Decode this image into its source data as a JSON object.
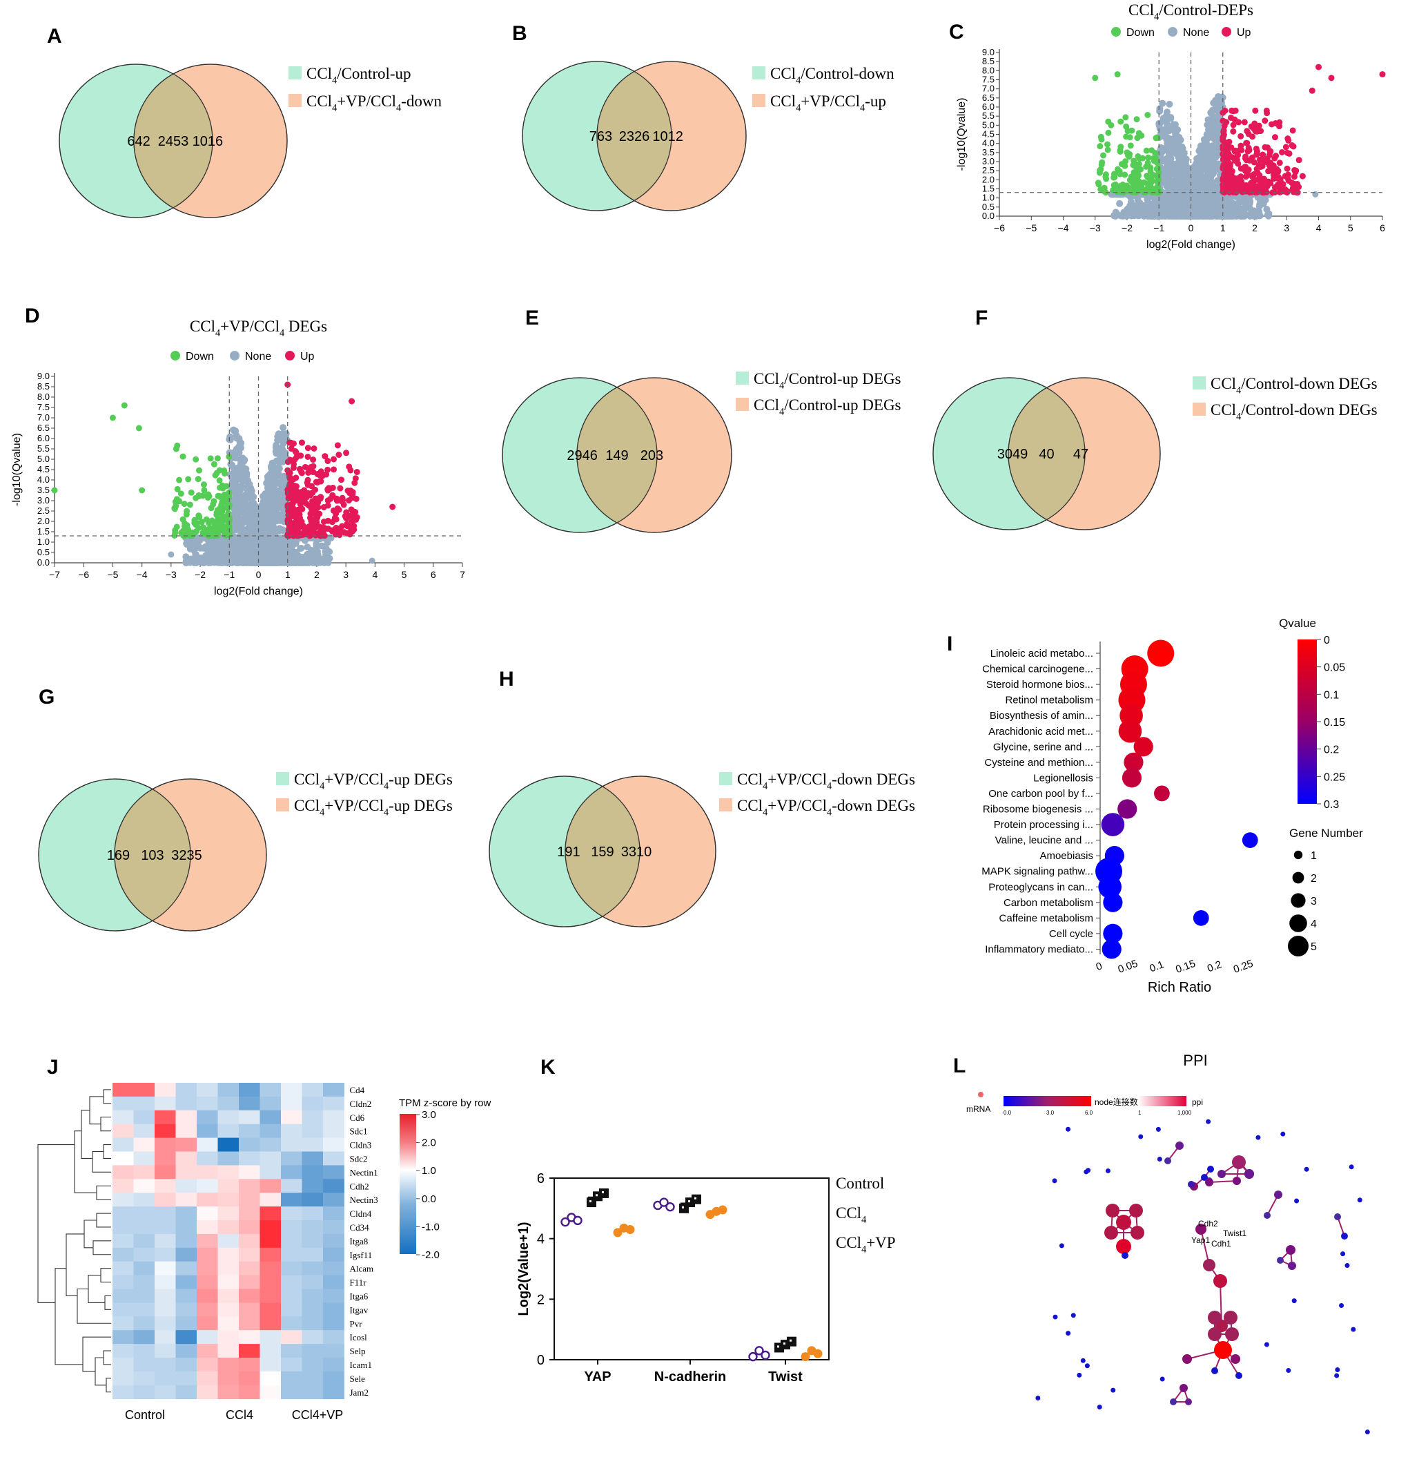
{
  "panels": {
    "A": "A",
    "B": "B",
    "C": "C",
    "D": "D",
    "E": "E",
    "F": "F",
    "G": "G",
    "H": "H",
    "I": "I",
    "J": "J",
    "K": "K",
    "L": "L"
  },
  "colors": {
    "left": "#b5edd6",
    "right": "#fac7a8",
    "overlap": "#cbbf8f",
    "down": "#55cc55",
    "none": "#97adc4",
    "up": "#e5195a"
  },
  "chart_data": [
    {
      "id": "A",
      "type": "venn",
      "sets": [
        {
          "legend_main": "CCl",
          "legend_sub": "4",
          "legend_rest": "/Control-up",
          "only": "642"
        },
        {
          "legend_main": "CCl",
          "legend_sub": "4",
          "legend_rest": "+VP/CCl",
          "legend_sub2": "4",
          "legend_tail": "-down",
          "only": "1016"
        }
      ],
      "overlap": "2453"
    },
    {
      "id": "B",
      "type": "venn",
      "sets": [
        {
          "legend_main": "CCl",
          "legend_sub": "4",
          "legend_rest": "/Control-down",
          "only": "763"
        },
        {
          "legend_main": "CCl",
          "legend_sub": "4",
          "legend_rest": "+VP/CCl",
          "legend_sub2": "4",
          "legend_tail": "-up",
          "only": "1012"
        }
      ],
      "overlap": "2326"
    },
    {
      "id": "C",
      "type": "scatter",
      "title_main": "CCl",
      "title_sub": "4",
      "title_rest": "/Control-DEPs",
      "legend": [
        "Down",
        "None",
        "Up"
      ],
      "xlabel": "log2(Fold change)",
      "ylabel": "-log10(Qvalue)",
      "xlim": [
        -6,
        6
      ],
      "ylim": [
        0,
        9
      ],
      "thresholds": {
        "fc": 1,
        "q": 1.3
      },
      "xticks": [
        "−6",
        "−5",
        "−4",
        "−3",
        "−2",
        "−1",
        "0",
        "1",
        "2",
        "3",
        "4",
        "5",
        "6"
      ],
      "yticks": [
        "0.0",
        "0.5",
        "1.0",
        "1.5",
        "2.0",
        "2.5",
        "3.0",
        "3.5",
        "4.0",
        "4.5",
        "5.0",
        "5.5",
        "6.0",
        "6.5",
        "7.0",
        "7.5",
        "8.0",
        "8.5",
        "9.0"
      ],
      "outliers": [
        [
          4.0,
          8.2
        ],
        [
          4.4,
          7.6
        ],
        [
          6.0,
          7.8
        ],
        [
          3.8,
          6.9
        ],
        [
          -3.0,
          7.6
        ],
        [
          -2.3,
          7.8
        ],
        [
          -2.2,
          5.2
        ],
        [
          -2.5,
          5.0
        ],
        [
          -2.0,
          3.5
        ],
        [
          3.5,
          2.2
        ],
        [
          3.9,
          1.2
        ]
      ]
    },
    {
      "id": "D",
      "type": "scatter",
      "title_main": "CCl",
      "title_sub": "4",
      "title_rest": "+VP/CCl",
      "title_sub2": "4",
      "title_tail": " DEGs",
      "legend": [
        "Down",
        "None",
        "Up"
      ],
      "xlabel": "log2(Fold change)",
      "ylabel": "-log10(Qvalue)",
      "xlim": [
        -7,
        7
      ],
      "ylim": [
        0,
        9
      ],
      "thresholds": {
        "fc": 1,
        "q": 1.3
      },
      "xticks": [
        "−7",
        "−6",
        "−5",
        "−4",
        "−3",
        "−2",
        "−1",
        "0",
        "1",
        "2",
        "3",
        "4",
        "5",
        "6",
        "7"
      ],
      "yticks": [
        "0.0",
        "0.5",
        "1.0",
        "1.5",
        "2.0",
        "2.5",
        "3.0",
        "3.5",
        "4.0",
        "4.5",
        "5.0",
        "5.5",
        "6.0",
        "6.5",
        "7.0",
        "7.5",
        "8.0",
        "8.5",
        "9.0"
      ],
      "outliers": [
        [
          -4.6,
          7.6
        ],
        [
          -5.0,
          7.0
        ],
        [
          -4.1,
          6.5
        ],
        [
          -4.0,
          3.5
        ],
        [
          -7.0,
          3.5
        ],
        [
          3.2,
          7.8
        ],
        [
          1.0,
          8.6
        ],
        [
          4.6,
          2.7
        ],
        [
          3.9,
          0.1
        ],
        [
          -3.0,
          0.4
        ]
      ]
    },
    {
      "id": "E",
      "type": "venn",
      "sets": [
        {
          "legend_main": "CCl",
          "legend_sub": "4",
          "legend_rest": "/Control-up DEGs",
          "only": "2946"
        },
        {
          "legend_main": "CCl",
          "legend_sub": "4",
          "legend_rest": "/Control-up DEGs",
          "only": "203"
        }
      ],
      "overlap": "149"
    },
    {
      "id": "F",
      "type": "venn",
      "sets": [
        {
          "legend_main": "CCl",
          "legend_sub": "4",
          "legend_rest": "/Control-down DEGs",
          "only": "3049"
        },
        {
          "legend_main": "CCl",
          "legend_sub": "4",
          "legend_rest": "/Control-down DEGs",
          "only": "47"
        }
      ],
      "overlap": "40"
    },
    {
      "id": "G",
      "type": "venn",
      "sets": [
        {
          "legend_main": "CCl",
          "legend_sub": "4",
          "legend_rest": "+VP/CCl",
          "legend_sub2": "4",
          "legend_tail": "-up DEGs",
          "only": "169"
        },
        {
          "legend_main": "CCl",
          "legend_sub": "4",
          "legend_rest": "+VP/CCl",
          "legend_sub2": "4",
          "legend_tail": "-up DEGs",
          "only": "3235"
        }
      ],
      "overlap": "103"
    },
    {
      "id": "H",
      "type": "venn",
      "sets": [
        {
          "legend_main": "CCl",
          "legend_sub": "4",
          "legend_rest": "+VP/CCl",
          "legend_sub2": "4",
          "legend_tail": "-down DEGs",
          "only": "191"
        },
        {
          "legend_main": "CCl",
          "legend_sub": "4",
          "legend_rest": "+VP/CCl",
          "legend_sub2": "4",
          "legend_tail": "-down DEGs",
          "only": "3310"
        }
      ],
      "overlap": "159"
    },
    {
      "id": "I",
      "type": "scatter",
      "xlabel": "Rich Ratio",
      "xticks": [
        "0",
        "0.05",
        "0.1",
        "0.15",
        "0.2",
        "0.25"
      ],
      "xlim": [
        0,
        0.28
      ],
      "qvalue_title": "Qvalue",
      "qvalue_ticks": [
        "0",
        "0.05",
        "0.1",
        "0.15",
        "0.2",
        "0.25",
        "0.3"
      ],
      "size_title": "Gene Number",
      "size_ticks": [
        "1",
        "2",
        "3",
        "4",
        "5"
      ],
      "terms": [
        {
          "name": "Linoleic acid metabo...",
          "ratio": 0.105,
          "q": 0.0,
          "n": 5
        },
        {
          "name": "Chemical carcinogene...",
          "ratio": 0.06,
          "q": 0.01,
          "n": 5
        },
        {
          "name": "Steroid hormone bios...",
          "ratio": 0.058,
          "q": 0.015,
          "n": 5
        },
        {
          "name": "Retinol metabolism",
          "ratio": 0.055,
          "q": 0.02,
          "n": 5
        },
        {
          "name": "Biosynthesis of amin...",
          "ratio": 0.054,
          "q": 0.03,
          "n": 4
        },
        {
          "name": "Arachidonic acid met...",
          "ratio": 0.052,
          "q": 0.035,
          "n": 4
        },
        {
          "name": "Glycine, serine and ...",
          "ratio": 0.075,
          "q": 0.04,
          "n": 3
        },
        {
          "name": "Cysteine and methion...",
          "ratio": 0.058,
          "q": 0.06,
          "n": 3
        },
        {
          "name": "Legionellosis",
          "ratio": 0.055,
          "q": 0.07,
          "n": 3
        },
        {
          "name": "One carbon pool by f...",
          "ratio": 0.107,
          "q": 0.07,
          "n": 2
        },
        {
          "name": "Ribosome biogenesis ...",
          "ratio": 0.047,
          "q": 0.15,
          "n": 3
        },
        {
          "name": "Protein processing i...",
          "ratio": 0.022,
          "q": 0.22,
          "n": 4
        },
        {
          "name": "Valine, leucine and ...",
          "ratio": 0.26,
          "q": 0.29,
          "n": 2
        },
        {
          "name": "Amoebiasis",
          "ratio": 0.025,
          "q": 0.29,
          "n": 3
        },
        {
          "name": "MAPK signaling pathw...",
          "ratio": 0.015,
          "q": 0.3,
          "n": 5
        },
        {
          "name": "Proteoglycans in can...",
          "ratio": 0.017,
          "q": 0.3,
          "n": 4
        },
        {
          "name": "Carbon metabolism",
          "ratio": 0.022,
          "q": 0.3,
          "n": 3
        },
        {
          "name": "Caffeine metabolism",
          "ratio": 0.175,
          "q": 0.3,
          "n": 2
        },
        {
          "name": "Cell cycle",
          "ratio": 0.022,
          "q": 0.3,
          "n": 3
        },
        {
          "name": "Inflammatory mediato...",
          "ratio": 0.02,
          "q": 0.3,
          "n": 3
        }
      ]
    },
    {
      "id": "J",
      "type": "heatmap",
      "legend_title": "TPM z-score by row",
      "legend_ticks": [
        "3.0",
        "2.0",
        "1.0",
        "0.0",
        "-1.0",
        "-2.0"
      ],
      "columns": [
        "Control",
        "CCl4",
        "CCl4+VP"
      ],
      "rows": [
        "Cd4",
        "Cldn2",
        "Cd6",
        "Sdc1",
        "Cldn3",
        "Sdc2",
        "Nectin1",
        "Cdh2",
        "Nectin3",
        "Cldn4",
        "Cd34",
        "Itga8",
        "Igsf11",
        "Alcam",
        "F11r",
        "Itga6",
        "Itgav",
        "Pvr",
        "Icosl",
        "Selp",
        "Icam1",
        "Sele",
        "Jam2"
      ],
      "values": [
        [
          2.0,
          2.0,
          0.3,
          -0.6,
          -0.4,
          -0.8,
          -1.3,
          -0.7,
          -0.2,
          -0.5,
          -0.9
        ],
        [
          -0.5,
          -0.5,
          -0.3,
          -0.6,
          -0.5,
          -0.7,
          -1.2,
          -0.8,
          -0.2,
          -0.6,
          -0.5
        ],
        [
          -0.3,
          -0.6,
          2.2,
          0.3,
          -0.9,
          -0.4,
          -0.3,
          -1.1,
          0.2,
          -0.5,
          -0.3
        ],
        [
          0.5,
          -0.4,
          2.6,
          0.3,
          -1.0,
          -0.5,
          -0.7,
          -0.9,
          -0.4,
          -0.5,
          -0.3
        ],
        [
          -0.4,
          0.2,
          1.5,
          1.4,
          -0.2,
          -2.0,
          -0.8,
          -0.7,
          -0.4,
          -0.4,
          -0.2
        ],
        [
          0.0,
          -0.3,
          1.5,
          0.5,
          -0.5,
          -0.8,
          -0.5,
          -0.4,
          -0.8,
          -1.2,
          -0.5
        ],
        [
          0.7,
          0.6,
          1.6,
          0.5,
          0.5,
          0.4,
          0.2,
          -0.4,
          -1.0,
          -1.3,
          -1.2
        ],
        [
          0.5,
          0.1,
          0.4,
          -0.3,
          -0.2,
          0.5,
          0.9,
          1.3,
          -0.5,
          -1.3,
          -1.5
        ],
        [
          -0.3,
          -0.4,
          0.6,
          0.3,
          0.7,
          0.6,
          0.9,
          0.3,
          -1.4,
          -1.5,
          -1.2
        ],
        [
          -0.6,
          -0.6,
          -0.6,
          -0.8,
          0.1,
          0.4,
          0.9,
          2.5,
          -0.5,
          -0.6,
          -0.9
        ],
        [
          -0.6,
          -0.6,
          -0.6,
          -0.8,
          0.3,
          0.6,
          1.0,
          2.8,
          -0.6,
          -0.7,
          -0.8
        ],
        [
          -0.5,
          -0.7,
          -0.4,
          -0.8,
          1.0,
          -0.3,
          0.7,
          2.8,
          -0.6,
          -0.7,
          -0.9
        ],
        [
          -0.7,
          -0.6,
          -0.5,
          -1.1,
          1.2,
          0.3,
          0.6,
          2.0,
          -0.6,
          -0.6,
          -1.0
        ],
        [
          -0.5,
          -0.8,
          -0.1,
          -0.7,
          1.2,
          0.3,
          0.8,
          1.8,
          -0.7,
          -0.8,
          -0.9
        ],
        [
          -0.6,
          -0.7,
          -0.2,
          -1.0,
          1.3,
          0.2,
          1.0,
          1.8,
          -0.6,
          -0.7,
          -1.0
        ],
        [
          -0.7,
          -0.7,
          -0.3,
          -0.8,
          1.5,
          0.4,
          1.4,
          1.8,
          -0.6,
          -0.8,
          -0.9
        ],
        [
          -0.6,
          -0.6,
          -0.3,
          -0.7,
          1.3,
          0.3,
          1.1,
          2.0,
          -0.6,
          -0.8,
          -1.0
        ],
        [
          -0.5,
          -0.7,
          -0.4,
          -0.8,
          1.4,
          0.2,
          1.1,
          2.0,
          -0.7,
          -0.8,
          -1.0
        ],
        [
          -0.9,
          -1.1,
          -0.3,
          -1.6,
          -0.3,
          0.3,
          0.2,
          -0.3,
          0.4,
          -0.5,
          -0.7
        ],
        [
          -0.5,
          -0.6,
          -0.4,
          -0.9,
          1.0,
          0.3,
          2.5,
          -0.3,
          -0.7,
          -0.8,
          -0.8
        ],
        [
          -0.4,
          -0.6,
          -0.6,
          -0.7,
          0.8,
          1.3,
          1.4,
          -0.3,
          -0.6,
          -0.8,
          -0.9
        ],
        [
          -0.4,
          -0.5,
          -0.6,
          -0.6,
          0.6,
          1.3,
          1.5,
          0.0,
          -0.8,
          -0.8,
          -1.0
        ],
        [
          -0.5,
          -0.6,
          -0.5,
          -0.7,
          0.5,
          1.2,
          1.4,
          0.1,
          -0.8,
          -0.8,
          -1.0
        ]
      ]
    },
    {
      "id": "K",
      "type": "scatter",
      "ylabel": "Log2(Value+1)",
      "ylim": [
        0,
        6
      ],
      "yticks": [
        "0",
        "2",
        "4",
        "6"
      ],
      "categories": [
        "YAP",
        "N-cadherin",
        "Twist"
      ],
      "legend_control": "Control",
      "legend_ccl": "CCl",
      "legend_ccl_sub": "4",
      "legend_vp_rest": "+VP",
      "series": [
        {
          "name": "Control",
          "color": "#4b1a8a",
          "values": [
            [
              4.55,
              4.7,
              4.6
            ],
            [
              5.1,
              5.2,
              5.05
            ],
            [
              0.1,
              0.3,
              0.15
            ]
          ]
        },
        {
          "name": "CCl4",
          "color": "#111111",
          "values": [
            [
              5.2,
              5.4,
              5.5
            ],
            [
              5.0,
              5.2,
              5.3
            ],
            [
              0.4,
              0.5,
              0.6
            ]
          ]
        },
        {
          "name": "CCl4+VP",
          "color": "#f08a1e",
          "values": [
            [
              4.2,
              4.35,
              4.3
            ],
            [
              4.8,
              4.9,
              4.95
            ],
            [
              0.1,
              0.3,
              0.2
            ]
          ]
        }
      ]
    },
    {
      "id": "L",
      "type": "network",
      "title": "PPI",
      "legend_mrna": "mRNA",
      "legend_nodes": "node连接数",
      "legend_nodes_ticks": [
        "0.0",
        "3.0",
        "6.0"
      ],
      "legend_ppi": "ppi",
      "legend_ppi_ticks": [
        "1",
        "1,000"
      ],
      "labels": [
        "Cdh2",
        "Twist1",
        "Yap1",
        "Cdh1"
      ]
    }
  ]
}
